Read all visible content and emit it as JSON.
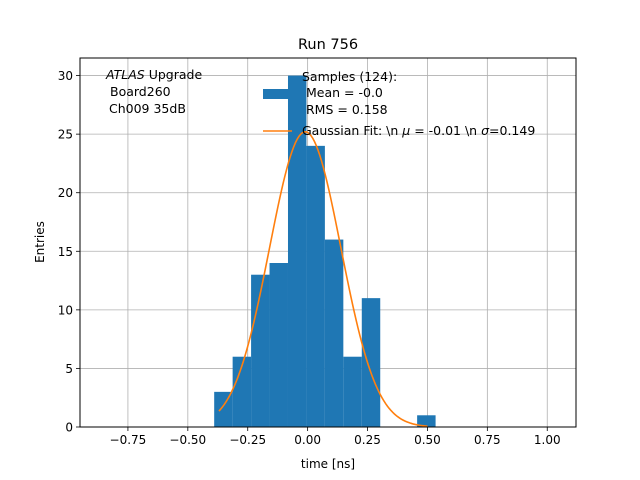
{
  "chart_data": {
    "type": "bar",
    "title": "Run 756",
    "xlabel": "time [ns]",
    "ylabel": "Entries",
    "xlim": [
      -0.95,
      1.12
    ],
    "ylim": [
      0,
      31.5
    ],
    "grid": true,
    "xticks": [
      -0.75,
      -0.5,
      -0.25,
      0.0,
      0.25,
      0.5,
      0.75,
      1.0
    ],
    "xtick_labels": [
      "−0.75",
      "−0.50",
      "−0.25",
      "0.00",
      "0.25",
      "0.50",
      "0.75",
      "1.00"
    ],
    "yticks": [
      0,
      5,
      10,
      15,
      20,
      25,
      30
    ],
    "ytick_labels": [
      "0",
      "5",
      "10",
      "15",
      "20",
      "25",
      "30"
    ],
    "histogram": {
      "name": "Samples (124):",
      "color": "#1f77b4",
      "bin_edges": [
        -0.39,
        -0.313,
        -0.236,
        -0.159,
        -0.082,
        -0.005,
        0.072,
        0.149,
        0.226,
        0.303,
        0.38,
        0.457,
        0.534
      ],
      "counts": [
        3,
        6,
        13,
        14,
        30,
        24,
        16,
        6,
        11,
        0,
        0,
        1
      ]
    },
    "fit": {
      "name": "Gaussian Fit",
      "color": "#ff7f0e",
      "mu": -0.01,
      "sigma": 0.149,
      "amplitude": 25.2,
      "x_range": [
        -0.37,
        0.5
      ]
    },
    "annotation_lines": [
      "ATLAS",
      " Upgrade",
      "Board260",
      "Ch009 35dB"
    ],
    "legend": {
      "placement": "top-right",
      "entries": [
        {
          "lines": [
            "Samples (124):",
            "Mean = -0.0",
            "RMS = 0.158"
          ],
          "kind": "patch"
        },
        {
          "prefix": "Gaussian Fit: \\n ",
          "mu_symbol": "μ",
          "mid": " = -0.01 \\n ",
          "sigma_symbol": "σ",
          "tail": "=0.149",
          "kind": "line"
        }
      ]
    }
  }
}
